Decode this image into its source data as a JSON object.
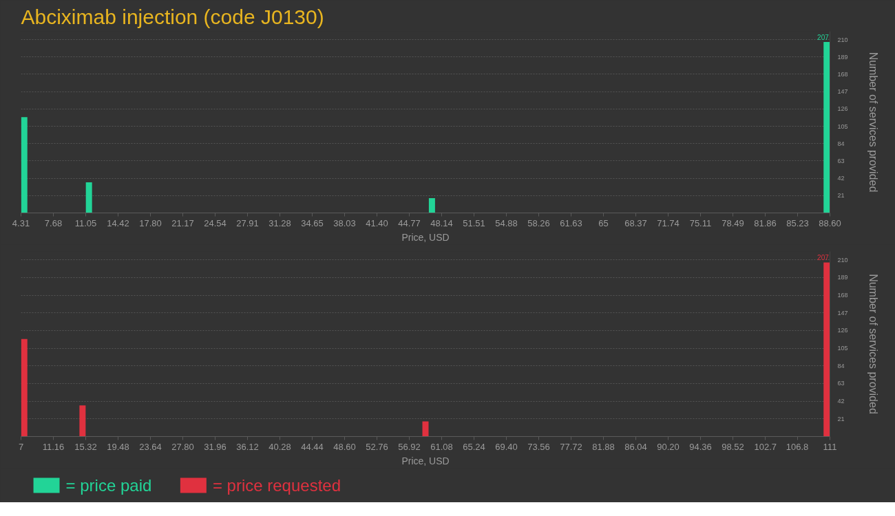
{
  "chart_data": [
    {
      "type": "bar",
      "title": "Abciximab injection (code J0130)",
      "xlabel": "Price, USD",
      "ylabel": "Number of services provided",
      "series": [
        {
          "name": "= price paid",
          "color": "#22d497",
          "x": [
            4.65,
            11.39,
            47.13,
            88.26
          ],
          "values": [
            116,
            37,
            18,
            207
          ],
          "value_labels": [
            null,
            null,
            null,
            "207"
          ]
        }
      ],
      "xlim": [
        4.31,
        88.6
      ],
      "ylim": [
        0,
        220
      ],
      "xticks": [
        4.31,
        7.68,
        11.05,
        14.42,
        {
          "value": 17.8,
          "label": "17.80"
        },
        21.17,
        24.54,
        27.91,
        31.28,
        34.65,
        38.03,
        {
          "value": 41.4,
          "label": "41.40"
        },
        44.77,
        48.14,
        51.51,
        54.88,
        58.26,
        61.63,
        65,
        68.37,
        71.74,
        75.11,
        78.49,
        81.86,
        85.23,
        {
          "value": 88.6,
          "label": "88.60"
        }
      ],
      "yticks": [
        21,
        42,
        63,
        84,
        105,
        126,
        147,
        168,
        189,
        210
      ],
      "grid": "y",
      "legend": "bottom left"
    },
    {
      "type": "bar",
      "xlabel": "Price, USD",
      "ylabel": "Number of services provided",
      "series": [
        {
          "name": "= price requested",
          "color": "#e0313f",
          "x": [
            7.42,
            14.91,
            59.0,
            110.58
          ],
          "values": [
            116,
            37,
            18,
            207
          ],
          "value_labels": [
            null,
            null,
            null,
            "207"
          ]
        }
      ],
      "xlim": [
        7,
        111
      ],
      "ylim": [
        0,
        220
      ],
      "xticks": [
        7,
        11.16,
        15.32,
        19.48,
        23.64,
        {
          "value": 27.8,
          "label": "27.80"
        },
        31.96,
        36.12,
        40.28,
        44.44,
        {
          "value": 48.6,
          "label": "48.60"
        },
        52.76,
        56.92,
        61.08,
        65.24,
        {
          "value": 69.4,
          "label": "69.40"
        },
        73.56,
        77.72,
        81.88,
        86.04,
        {
          "value": 90.2,
          "label": "90.20"
        },
        94.36,
        98.52,
        102.7,
        106.8,
        111
      ],
      "yticks": [
        21,
        42,
        63,
        84,
        105,
        126,
        147,
        168,
        189,
        210
      ],
      "grid": "y",
      "legend": "bottom left"
    }
  ]
}
